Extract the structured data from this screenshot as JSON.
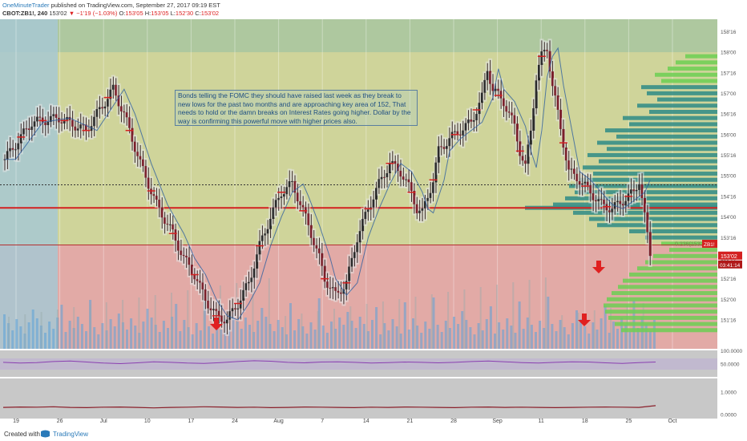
{
  "header": {
    "author": "OneMinuteTrader",
    "published": "published on TradingView.com, September 27, 2017 09:19 EST",
    "symbol": "CBOT:ZB1!, 240",
    "price": "153'02",
    "change_arrow": "▼",
    "change": "−1'19 (−1.03%)",
    "o_label": "O:",
    "o_value": "153'05",
    "h_label": "H:",
    "h_value": "153'05",
    "l_label": "L:",
    "l_value": "152'30",
    "c_label": "C:",
    "c_value": "153'02"
  },
  "annotation": {
    "text": "Bonds telling the FOMC they should have raised last week as they break to new lows for the past two months and are approaching key area of 152, That needs to hold or the damn breaks on Interest Rates going higher. Dollar by the way is confirming this powerful move with higher prices also."
  },
  "footer": {
    "created_with": "Created with",
    "brand": "TradingView"
  },
  "colors": {
    "upper_zone": "#cfd49a",
    "lower_zone": "#e2aaa6",
    "top_band": "#a8c6a0",
    "left_band": "#a7c8d2",
    "red_line": "#d42020",
    "volume_profile": "#2e8b86",
    "volume_profile_light": "#6ccf52",
    "rsi_line": "#8a3fb0",
    "arrow": "#e02020"
  },
  "chart_data": [
    {
      "type": "candlestick",
      "ylabel_unit": "points'32nds",
      "y_ticks": [
        "158'16",
        "158'00",
        "157'16",
        "157'00",
        "156'16",
        "156'00",
        "155'16",
        "155'00",
        "154'16",
        "154'00",
        "153'16",
        "153'00",
        "152'16",
        "152'00",
        "151'16"
      ],
      "x_ticks": [
        "19",
        "26",
        "Jul",
        "10",
        "17",
        "24",
        "Aug",
        "7",
        "14",
        "21",
        "28",
        "Sep",
        "11",
        "18",
        "25",
        "Oct"
      ],
      "ylim": [
        150.8,
        158.8
      ],
      "price_label": "153'02",
      "countdown_label": "03:41:14",
      "symbol_tag": "ZB1!",
      "fib_label": "0.236(153'10)",
      "levels": [
        {
          "name": "resistance",
          "value": 154.22,
          "style": "solid-red"
        },
        {
          "name": "dotted",
          "value": 154.78,
          "style": "dotted"
        },
        {
          "name": "zone-boundary",
          "value": 153.32,
          "style": "thin-red"
        }
      ],
      "price_path": [
        [
          0,
          155.4
        ],
        [
          5,
          156.3
        ],
        [
          10,
          156.4
        ],
        [
          15,
          156.1
        ],
        [
          20,
          157.1
        ],
        [
          22,
          156.5
        ],
        [
          25,
          155.3
        ],
        [
          28,
          154.3
        ],
        [
          31,
          153.6
        ],
        [
          33,
          153.0
        ],
        [
          35,
          152.6
        ],
        [
          37,
          152.0
        ],
        [
          39,
          151.6
        ],
        [
          41,
          151.5
        ],
        [
          43,
          151.9
        ],
        [
          45,
          152.4
        ],
        [
          47,
          153.3
        ],
        [
          49,
          154.0
        ],
        [
          51,
          154.6
        ],
        [
          53,
          154.8
        ],
        [
          54,
          154.5
        ],
        [
          56,
          153.8
        ],
        [
          58,
          153.0
        ],
        [
          59,
          152.5
        ],
        [
          61,
          152.1
        ],
        [
          63,
          152.4
        ],
        [
          65,
          153.5
        ],
        [
          67,
          154.2
        ],
        [
          69,
          154.8
        ],
        [
          71,
          155.3
        ],
        [
          73,
          155.1
        ],
        [
          75,
          154.6
        ],
        [
          76,
          154.2
        ],
        [
          77,
          154.1
        ],
        [
          79,
          154.9
        ],
        [
          80,
          155.6
        ],
        [
          82,
          155.9
        ],
        [
          84,
          156.1
        ],
        [
          86,
          156.3
        ],
        [
          88,
          156.9
        ],
        [
          89,
          157.6
        ],
        [
          90,
          157.1
        ],
        [
          92,
          156.8
        ],
        [
          94,
          156.2
        ],
        [
          95,
          155.6
        ],
        [
          96,
          155.2
        ],
        [
          97,
          156.1
        ],
        [
          98,
          157.4
        ],
        [
          99,
          157.9
        ],
        [
          100,
          158.1
        ],
        [
          101,
          157.2
        ],
        [
          102,
          156.5
        ],
        [
          103,
          155.8
        ],
        [
          104,
          155.1
        ],
        [
          106,
          154.9
        ],
        [
          108,
          154.6
        ],
        [
          110,
          154.3
        ],
        [
          112,
          154.2
        ],
        [
          114,
          154.4
        ],
        [
          116,
          154.6
        ],
        [
          117,
          154.9
        ],
        [
          118,
          154.0
        ],
        [
          119,
          153.1
        ]
      ],
      "red_arrows": [
        {
          "x_tick": "17",
          "note": "down"
        },
        {
          "x_tick": "18",
          "note": "down"
        },
        {
          "x_tick": "18",
          "note": "down-near-price"
        }
      ]
    },
    {
      "type": "line",
      "name_label": "",
      "y_ticks": [
        "100.0000",
        "50.0000"
      ],
      "values_description_free": true,
      "ylim": [
        0,
        100
      ],
      "series": [
        {
          "values": [
            55,
            52,
            54,
            58,
            60,
            56,
            52,
            50,
            53,
            57,
            55,
            52,
            51,
            54,
            58,
            61,
            59,
            55,
            53,
            56,
            57,
            55,
            52,
            54,
            56,
            55,
            53,
            55,
            58,
            60,
            57,
            54,
            52,
            55,
            57,
            56,
            53,
            51,
            54,
            56
          ]
        }
      ]
    },
    {
      "type": "line",
      "y_ticks": [
        "1.0000",
        "0.0000"
      ],
      "ylim": [
        -0.2,
        1.6
      ],
      "series": [
        {
          "values": [
            0.3,
            0.32,
            0.31,
            0.33,
            0.3,
            0.29,
            0.31,
            0.32,
            0.3,
            0.28,
            0.3,
            0.31,
            0.33,
            0.32,
            0.3,
            0.31,
            0.29,
            0.3,
            0.32,
            0.31,
            0.3,
            0.29,
            0.31,
            0.3,
            0.32,
            0.31,
            0.3,
            0.29,
            0.31,
            0.32,
            0.3,
            0.31,
            0.3,
            0.29,
            0.3,
            0.31,
            0.32,
            0.31,
            0.3,
            0.38
          ]
        }
      ]
    }
  ]
}
